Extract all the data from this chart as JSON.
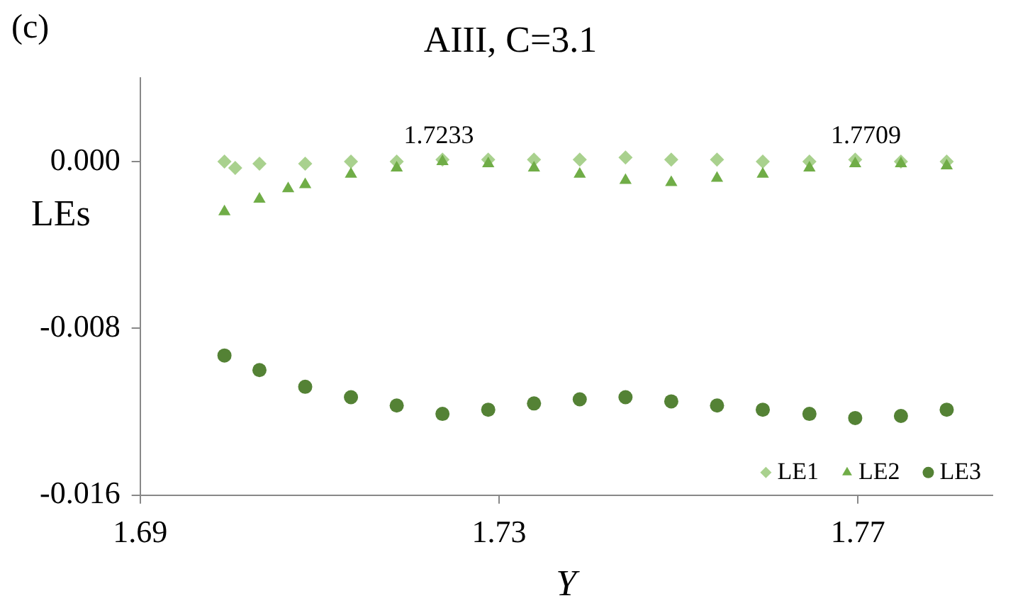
{
  "chart_data": {
    "type": "scatter",
    "title": "AIII, C=3.1",
    "xlabel": "Y",
    "ylabel": "LEs",
    "annotations": [
      "(c)",
      {
        "text": "1.7233",
        "x": 1.7233,
        "y": 0.0
      },
      {
        "text": "1.7709",
        "x": 1.7709,
        "y": 0.0
      }
    ],
    "xlim": [
      1.69,
      1.785
    ],
    "xticks": [
      1.69,
      1.73,
      1.77
    ],
    "ylim": [
      -0.016,
      0.004
    ],
    "yticks": [
      {
        "value": -0.016,
        "label": "-0.016"
      },
      {
        "value": -0.008,
        "label": "-0.008"
      },
      {
        "value": 0,
        "label": "0.000"
      }
    ],
    "grid": false,
    "legend": "bottom right",
    "series": [
      {
        "name": "LE1",
        "color": "#a9d18e",
        "marker": "diamond",
        "x": [
          1.6994,
          1.7006,
          1.7033,
          1.7084,
          1.7135,
          1.7186,
          1.7237,
          1.7288,
          1.7339,
          1.739,
          1.7441,
          1.7492,
          1.7543,
          1.7594,
          1.7646,
          1.7697,
          1.7748,
          1.7799
        ],
        "values": [
          0.0,
          -0.0003,
          -0.0001,
          -0.0001,
          0.0,
          0.0,
          0.0001,
          0.0001,
          0.0001,
          0.0001,
          0.0002,
          0.0001,
          0.0001,
          0.0,
          0.0,
          0.0001,
          0.0,
          0.0
        ]
      },
      {
        "name": "LE2",
        "color": "#70ad47",
        "marker": "triangle",
        "x": [
          1.6994,
          1.7033,
          1.7065,
          1.7084,
          1.7135,
          1.7186,
          1.7237,
          1.7288,
          1.7339,
          1.739,
          1.7441,
          1.7492,
          1.7543,
          1.7594,
          1.7646,
          1.7697,
          1.7748,
          1.7799
        ],
        "values": [
          -0.0024,
          -0.0018,
          -0.0013,
          -0.0011,
          -0.0006,
          -0.0003,
          0.0,
          -0.0001,
          -0.0003,
          -0.0006,
          -0.0009,
          -0.001,
          -0.0008,
          -0.0006,
          -0.0003,
          -0.0001,
          -0.0001,
          -0.0002
        ]
      },
      {
        "name": "LE3",
        "color": "#548235",
        "marker": "circle",
        "x": [
          1.6994,
          1.7033,
          1.7084,
          1.7135,
          1.7186,
          1.7237,
          1.7288,
          1.7339,
          1.739,
          1.7441,
          1.7492,
          1.7543,
          1.7594,
          1.7646,
          1.7697,
          1.7748,
          1.7799
        ],
        "values": [
          -0.0093,
          -0.01,
          -0.0108,
          -0.0113,
          -0.0117,
          -0.0121,
          -0.0119,
          -0.0116,
          -0.0114,
          -0.0113,
          -0.0115,
          -0.0117,
          -0.0119,
          -0.0121,
          -0.0123,
          -0.0122,
          -0.0119
        ]
      }
    ]
  }
}
